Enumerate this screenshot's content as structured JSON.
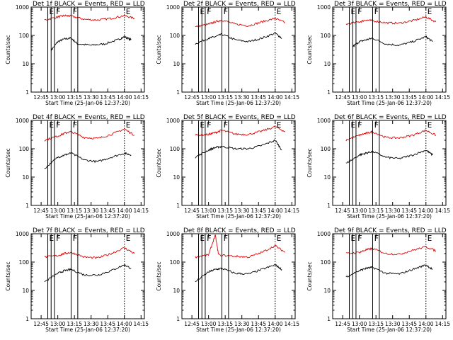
{
  "colors": {
    "events": "#000000",
    "lld": "#e00000",
    "background": "#ffffff"
  },
  "chart_data": [
    {
      "type": "line",
      "title": "Det 1f BLACK = Events, RED = LLD",
      "xlabel": "Start Time (25-Jan-06 12:37:20)",
      "ylabel": "Counts/sec",
      "ylog": true,
      "ylim": [
        1,
        1000
      ],
      "xtick_labels": [
        "12:45",
        "13:00",
        "13:15",
        "13:30",
        "13:45",
        "14:00",
        "14:15"
      ],
      "ytick_labels": [
        "1",
        "10",
        "100",
        "1000"
      ],
      "markers": [
        "E",
        "F",
        "F",
        "E"
      ],
      "series": [
        {
          "values": [
            [
              12.9,
              30
            ],
            [
              13.0,
              60
            ],
            [
              13.1,
              75
            ],
            [
              13.2,
              80
            ],
            [
              13.3,
              50
            ],
            [
              13.5,
              45
            ],
            [
              13.7,
              50
            ],
            [
              13.9,
              70
            ],
            [
              14.0,
              90
            ],
            [
              14.1,
              70
            ]
          ]
        },
        {
          "values": [
            [
              12.8,
              350
            ],
            [
              13.0,
              450
            ],
            [
              13.1,
              500
            ],
            [
              13.2,
              480
            ],
            [
              13.4,
              370
            ],
            [
              13.6,
              350
            ],
            [
              13.8,
              400
            ],
            [
              14.0,
              500
            ],
            [
              14.15,
              400
            ]
          ]
        }
      ]
    },
    {
      "type": "line",
      "title": "Det 2f BLACK = Events, RED = LLD",
      "xlabel": "Start Time (25-Jan-06 12:37:20)",
      "ylabel": "Counts/sec",
      "ylog": true,
      "ylim": [
        1,
        1000
      ],
      "xtick_labels": [
        "12:45",
        "13:00",
        "13:15",
        "13:30",
        "13:45",
        "14:00",
        "14:15"
      ],
      "ytick_labels": [
        "1",
        "10",
        "100",
        "1000"
      ],
      "markers": [
        "E",
        "F",
        "F",
        "E"
      ],
      "series": [
        {
          "values": [
            [
              12.8,
              50
            ],
            [
              13.0,
              80
            ],
            [
              13.1,
              90
            ],
            [
              13.2,
              110
            ],
            [
              13.4,
              70
            ],
            [
              13.6,
              60
            ],
            [
              13.8,
              80
            ],
            [
              14.0,
              120
            ],
            [
              14.1,
              80
            ]
          ]
        },
        {
          "values": [
            [
              12.8,
              200
            ],
            [
              13.0,
              250
            ],
            [
              13.1,
              300
            ],
            [
              13.2,
              350
            ],
            [
              13.4,
              250
            ],
            [
              13.6,
              220
            ],
            [
              13.8,
              300
            ],
            [
              14.0,
              400
            ],
            [
              14.15,
              280
            ]
          ]
        }
      ]
    },
    {
      "type": "line",
      "title": "Det 3f BLACK = Events, RED = LLD",
      "xlabel": "Start Time (25-Jan-06 12:37:20)",
      "ylabel": "Counts/sec",
      "ylog": true,
      "ylim": [
        1,
        1000
      ],
      "xtick_labels": [
        "12:45",
        "13:00",
        "13:15",
        "13:30",
        "13:45",
        "14:00",
        "14:15"
      ],
      "ytick_labels": [
        "1",
        "10",
        "100",
        "1000"
      ],
      "markers": [
        "E",
        "F",
        "F",
        "E"
      ],
      "series": [
        {
          "values": [
            [
              12.9,
              40
            ],
            [
              13.0,
              60
            ],
            [
              13.1,
              70
            ],
            [
              13.2,
              80
            ],
            [
              13.4,
              50
            ],
            [
              13.6,
              45
            ],
            [
              13.8,
              60
            ],
            [
              14.0,
              90
            ],
            [
              14.1,
              60
            ]
          ]
        },
        {
          "values": [
            [
              12.8,
              250
            ],
            [
              13.0,
              300
            ],
            [
              13.1,
              350
            ],
            [
              13.2,
              330
            ],
            [
              13.4,
              280
            ],
            [
              13.6,
              270
            ],
            [
              13.8,
              330
            ],
            [
              14.0,
              450
            ],
            [
              14.15,
              300
            ]
          ]
        }
      ]
    },
    {
      "type": "line",
      "title": "Det 4f BLACK = Events, RED = LLD",
      "xlabel": "Start Time (25-Jan-06 12:37:20)",
      "ylabel": "Counts/sec",
      "ylog": true,
      "ylim": [
        1,
        1000
      ],
      "xtick_labels": [
        "12:45",
        "13:00",
        "13:15",
        "13:30",
        "13:45",
        "14:00",
        "14:15"
      ],
      "ytick_labels": [
        "1",
        "10",
        "100",
        "1000"
      ],
      "markers": [
        "E",
        "F",
        "F",
        "E"
      ],
      "series": [
        {
          "values": [
            [
              12.8,
              20
            ],
            [
              13.0,
              50
            ],
            [
              13.1,
              60
            ],
            [
              13.2,
              70
            ],
            [
              13.4,
              40
            ],
            [
              13.6,
              35
            ],
            [
              13.8,
              50
            ],
            [
              14.0,
              70
            ],
            [
              14.1,
              60
            ]
          ]
        },
        {
          "values": [
            [
              12.8,
              200
            ],
            [
              13.0,
              280
            ],
            [
              13.1,
              350
            ],
            [
              13.2,
              400
            ],
            [
              13.4,
              250
            ],
            [
              13.6,
              230
            ],
            [
              13.8,
              320
            ],
            [
              14.0,
              500
            ],
            [
              14.15,
              300
            ]
          ]
        }
      ]
    },
    {
      "type": "line",
      "title": "Det 5f BLACK = Events, RED = LLD",
      "xlabel": "Start Time (25-Jan-06 12:37:20)",
      "ylabel": "Counts/sec",
      "ylog": true,
      "ylim": [
        1,
        1000
      ],
      "xtick_labels": [
        "12:45",
        "13:00",
        "13:15",
        "13:30",
        "13:45",
        "14:00",
        "14:15"
      ],
      "ytick_labels": [
        "1",
        "10",
        "100",
        "1000"
      ],
      "markers": [
        "E",
        "F",
        "F",
        "E"
      ],
      "series": [
        {
          "values": [
            [
              12.8,
              50
            ],
            [
              13.0,
              90
            ],
            [
              13.1,
              110
            ],
            [
              13.2,
              120
            ],
            [
              13.4,
              100
            ],
            [
              13.6,
              100
            ],
            [
              13.8,
              130
            ],
            [
              14.0,
              200
            ],
            [
              14.1,
              90
            ]
          ]
        },
        {
          "values": [
            [
              12.8,
              300
            ],
            [
              13.0,
              320
            ],
            [
              13.1,
              370
            ],
            [
              13.2,
              450
            ],
            [
              13.4,
              330
            ],
            [
              13.6,
              320
            ],
            [
              13.8,
              420
            ],
            [
              14.0,
              600
            ],
            [
              14.15,
              400
            ]
          ]
        }
      ]
    },
    {
      "type": "line",
      "title": "Det 6f BLACK = Events, RED = LLD",
      "xlabel": "Start Time (25-Jan-06 12:37:20)",
      "ylabel": "Counts/sec",
      "ylog": true,
      "ylim": [
        1,
        1000
      ],
      "xtick_labels": [
        "12:45",
        "13:00",
        "13:15",
        "13:30",
        "13:45",
        "14:00",
        "14:15"
      ],
      "ytick_labels": [
        "1",
        "10",
        "100",
        "1000"
      ],
      "markers": [
        "E",
        "F",
        "F",
        "E"
      ],
      "series": [
        {
          "values": [
            [
              12.8,
              30
            ],
            [
              13.0,
              60
            ],
            [
              13.1,
              70
            ],
            [
              13.2,
              80
            ],
            [
              13.4,
              50
            ],
            [
              13.6,
              45
            ],
            [
              13.8,
              60
            ],
            [
              14.0,
              90
            ],
            [
              14.1,
              60
            ]
          ]
        },
        {
          "values": [
            [
              12.8,
              200
            ],
            [
              13.0,
              300
            ],
            [
              13.1,
              350
            ],
            [
              13.2,
              400
            ],
            [
              13.4,
              250
            ],
            [
              13.6,
              240
            ],
            [
              13.8,
              300
            ],
            [
              14.0,
              450
            ],
            [
              14.15,
              300
            ]
          ]
        }
      ]
    },
    {
      "type": "line",
      "title": "Det 7f BLACK = Events, RED = LLD",
      "xlabel": "Start Time (25-Jan-06 12:37:20)",
      "ylabel": "Counts/sec",
      "ylog": true,
      "ylim": [
        1,
        1000
      ],
      "xtick_labels": [
        "12:45",
        "13:00",
        "13:15",
        "13:30",
        "13:45",
        "14:00",
        "14:15"
      ],
      "ytick_labels": [
        "1",
        "10",
        "100",
        "1000"
      ],
      "markers": [
        "E",
        "F",
        "F",
        "E"
      ],
      "series": [
        {
          "values": [
            [
              12.8,
              20
            ],
            [
              13.0,
              40
            ],
            [
              13.1,
              50
            ],
            [
              13.2,
              55
            ],
            [
              13.4,
              35
            ],
            [
              13.6,
              35
            ],
            [
              13.8,
              50
            ],
            [
              14.0,
              80
            ],
            [
              14.1,
              60
            ]
          ]
        },
        {
          "values": [
            [
              12.8,
              150
            ],
            [
              13.0,
              170
            ],
            [
              13.1,
              200
            ],
            [
              13.2,
              220
            ],
            [
              13.4,
              150
            ],
            [
              13.6,
              140
            ],
            [
              13.8,
              200
            ],
            [
              14.0,
              320
            ],
            [
              14.15,
              200
            ]
          ]
        }
      ]
    },
    {
      "type": "line",
      "title": "Det 8f BLACK = Events, RED = LLD",
      "xlabel": "Start Time (25-Jan-06 12:37:20)",
      "ylabel": "Counts/sec",
      "ylog": true,
      "ylim": [
        1,
        1000
      ],
      "xtick_labels": [
        "12:45",
        "13:00",
        "13:15",
        "13:30",
        "13:45",
        "14:00",
        "14:15"
      ],
      "ytick_labels": [
        "1",
        "10",
        "100",
        "1000"
      ],
      "markers": [
        "E",
        "F",
        "F",
        "E"
      ],
      "series": [
        {
          "values": [
            [
              12.8,
              20
            ],
            [
              13.0,
              45
            ],
            [
              13.1,
              55
            ],
            [
              13.2,
              60
            ],
            [
              13.4,
              40
            ],
            [
              13.6,
              38
            ],
            [
              13.8,
              55
            ],
            [
              14.0,
              80
            ],
            [
              14.1,
              55
            ]
          ]
        },
        {
          "values": [
            [
              12.8,
              150
            ],
            [
              13.0,
              180
            ],
            [
              13.1,
              900
            ],
            [
              13.15,
              180
            ],
            [
              13.4,
              160
            ],
            [
              13.6,
              150
            ],
            [
              13.8,
              220
            ],
            [
              14.0,
              380
            ],
            [
              14.15,
              220
            ]
          ]
        }
      ]
    },
    {
      "type": "line",
      "title": "Det 9f BLACK = Events, RED = LLD",
      "xlabel": "Start Time (25-Jan-06 12:37:20)",
      "ylabel": "Counts/sec",
      "ylog": true,
      "ylim": [
        1,
        1000
      ],
      "xtick_labels": [
        "12:45",
        "13:00",
        "13:15",
        "13:30",
        "13:45",
        "14:00",
        "14:15"
      ],
      "ytick_labels": [
        "1",
        "10",
        "100",
        "1000"
      ],
      "markers": [
        "E",
        "F",
        "F",
        "E"
      ],
      "series": [
        {
          "values": [
            [
              12.8,
              30
            ],
            [
              13.0,
              50
            ],
            [
              13.1,
              60
            ],
            [
              13.2,
              65
            ],
            [
              13.4,
              40
            ],
            [
              13.6,
              38
            ],
            [
              13.8,
              55
            ],
            [
              14.0,
              80
            ],
            [
              14.1,
              55
            ]
          ]
        },
        {
          "values": [
            [
              12.8,
              200
            ],
            [
              13.0,
              220
            ],
            [
              13.1,
              270
            ],
            [
              13.2,
              300
            ],
            [
              13.4,
              200
            ],
            [
              13.6,
              190
            ],
            [
              13.8,
              260
            ],
            [
              14.0,
              350
            ],
            [
              14.15,
              250
            ]
          ]
        }
      ]
    }
  ]
}
